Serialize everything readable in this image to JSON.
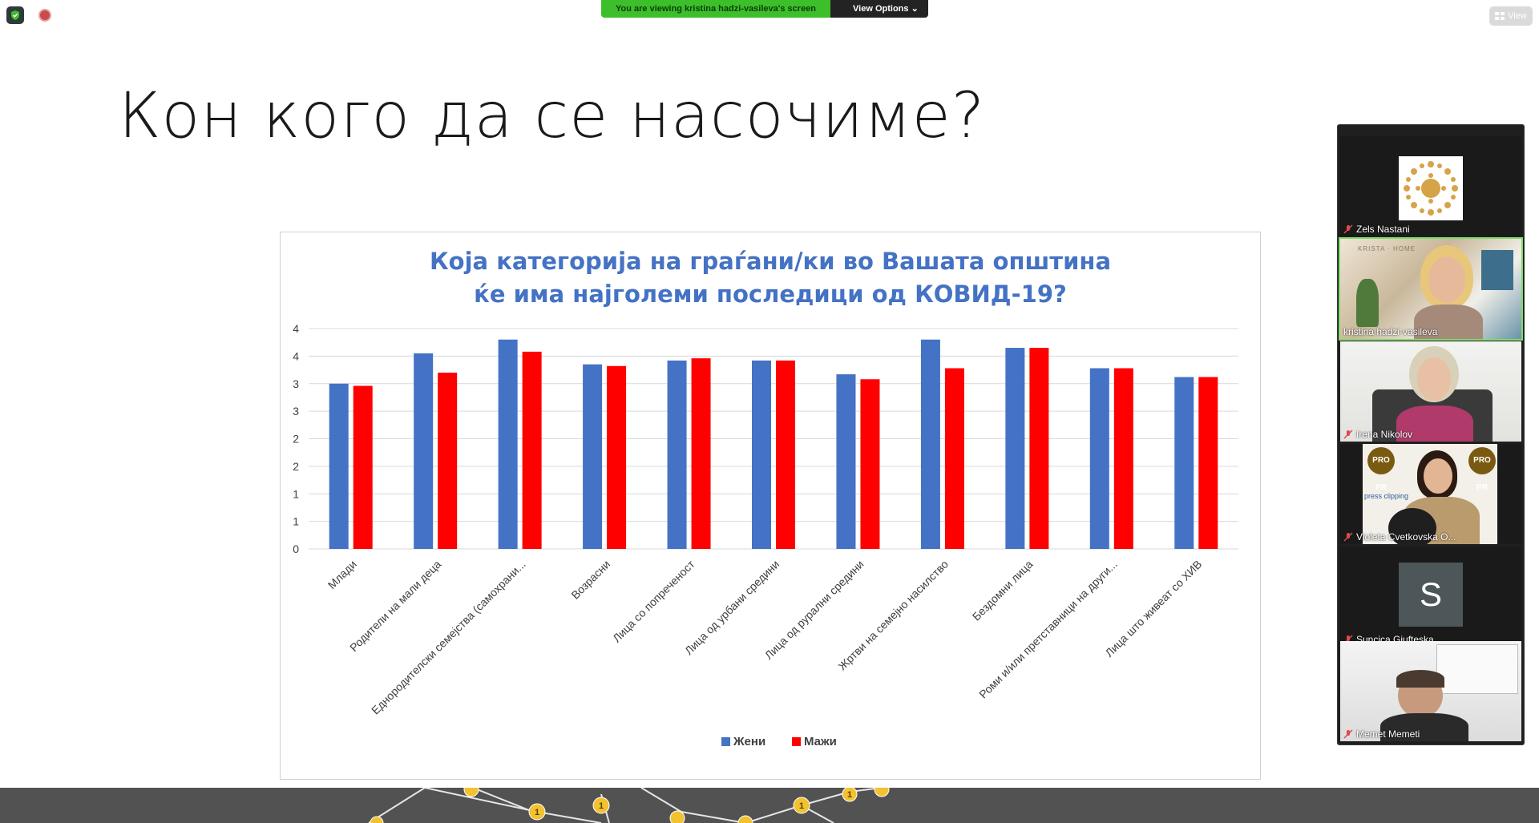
{
  "banner": {
    "viewing": "You are viewing kristina hadzi-vasileva's screen",
    "options": "View Options ⌄"
  },
  "view_button": {
    "label": "View"
  },
  "slide": {
    "title": "Кон кого да се насочиме?",
    "chart_title_line1": "Која категорија на граѓани/ки во Вашата општина",
    "chart_title_line2": "ќе има најголеми последици од КОВИД-19?"
  },
  "chart_data": {
    "type": "bar",
    "title": "Која категорија на граѓани/ки во Вашата општина ќе има најголеми последици од КОВИД-19?",
    "categories": [
      "Млади",
      "Родители на мали деца",
      "Еднородителски семејства (самохрани...",
      "Возрасни",
      "Лица со попреченост",
      "Лица од урбани средини",
      "Лица од рурални средини",
      "Жртви на семејно насилство",
      "Бездомни лица",
      "Роми и/или претставници на други...",
      "Лица што живеат со ХИВ"
    ],
    "series": [
      {
        "name": "Жени",
        "color": "#4472c4",
        "values": [
          3.0,
          3.55,
          3.8,
          3.35,
          3.42,
          3.42,
          3.17,
          3.8,
          3.65,
          3.28,
          3.12
        ]
      },
      {
        "name": "Мажи",
        "color": "#ff0000",
        "values": [
          2.96,
          3.2,
          3.58,
          3.32,
          3.46,
          3.42,
          3.08,
          3.28,
          3.65,
          3.28,
          3.12
        ]
      }
    ],
    "y_tick_labels": [
      "0",
      "1",
      "1",
      "2",
      "2",
      "3",
      "3",
      "4",
      "4"
    ],
    "ylim": [
      0,
      4
    ],
    "legend_position": "bottom",
    "grid": true
  },
  "participants": [
    {
      "name": "Zels Nastani",
      "muted": true,
      "type": "logo"
    },
    {
      "name": "kristina hadzi-vasileva",
      "muted": false,
      "type": "video",
      "active": true,
      "caption": "KRISTA · HOME"
    },
    {
      "name": "Irena Nikolov",
      "muted": true,
      "type": "video"
    },
    {
      "name": "Violeta Cvetkovska O...",
      "muted": true,
      "type": "video",
      "caption": "PRO PR",
      "caption2": "press clipping"
    },
    {
      "name": "Suncica Gjufteska",
      "muted": true,
      "type": "initial",
      "initial": "S"
    },
    {
      "name": "Memet Memeti",
      "muted": true,
      "type": "video"
    }
  ],
  "bottom_strip": {
    "badge_label": "1"
  }
}
